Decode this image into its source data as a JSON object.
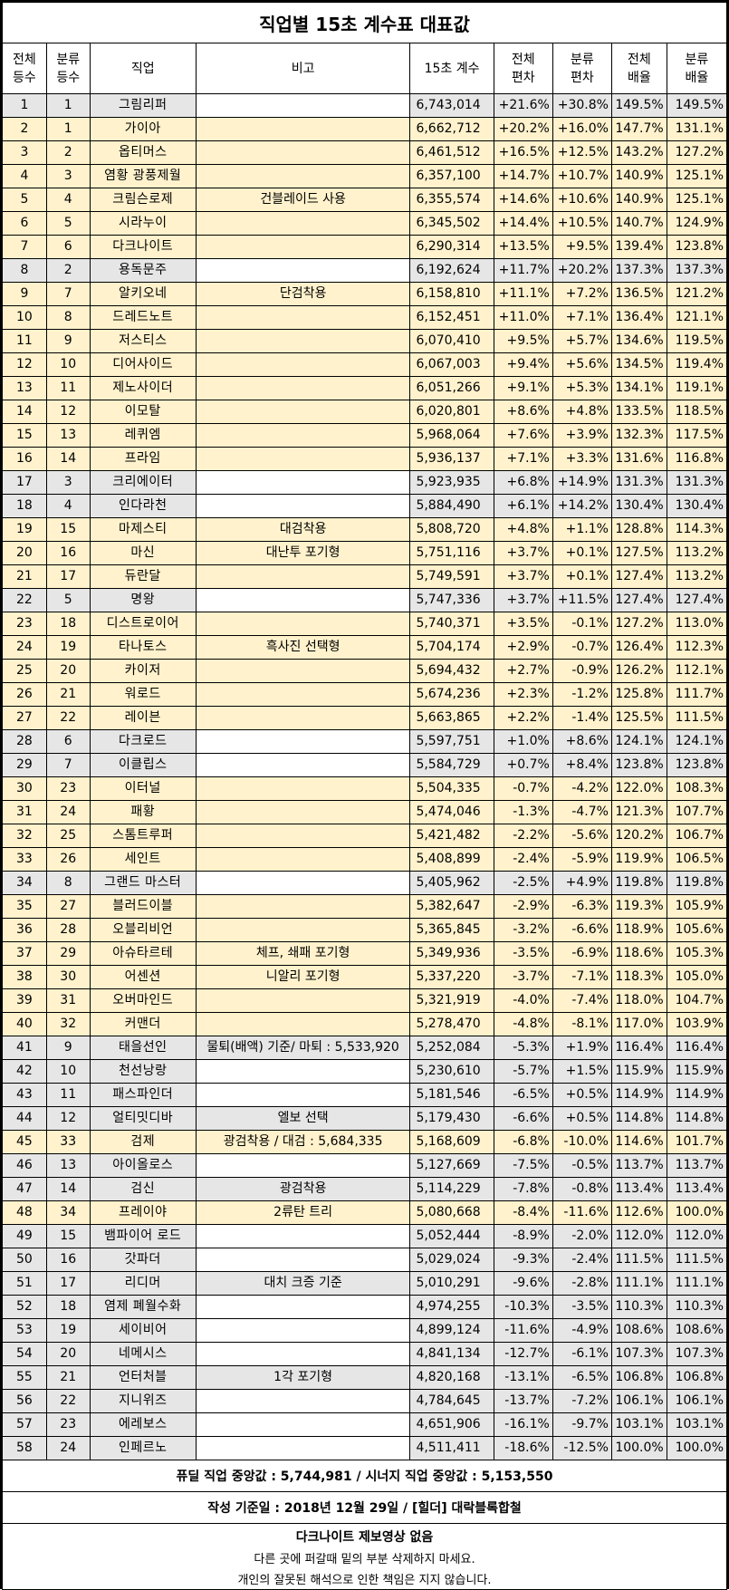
{
  "title": "직업별 15초 계수표 대표값",
  "headers": {
    "rank_total": [
      "전체",
      "등수"
    ],
    "rank_class": [
      "분류",
      "등수"
    ],
    "job": "직업",
    "note": "비고",
    "score": "15초 계수",
    "dev_total": [
      "전체",
      "편차"
    ],
    "dev_class": [
      "분류",
      "편차"
    ],
    "mult_total": [
      "전체",
      "배율"
    ],
    "mult_class": [
      "분류",
      "배율"
    ]
  },
  "rows": [
    {
      "rt": "1",
      "rc": "1",
      "job": "그림리퍼",
      "note": "",
      "score": "6,743,014",
      "dt": "+21.6%",
      "dc": "+30.8%",
      "mt": "149.5%",
      "mc": "149.5%",
      "color": "gray"
    },
    {
      "rt": "2",
      "rc": "1",
      "job": "가이아",
      "note": "",
      "score": "6,662,712",
      "dt": "+20.2%",
      "dc": "+16.0%",
      "mt": "147.7%",
      "mc": "131.1%",
      "color": "yellow"
    },
    {
      "rt": "3",
      "rc": "2",
      "job": "옵티머스",
      "note": "",
      "score": "6,461,512",
      "dt": "+16.5%",
      "dc": "+12.5%",
      "mt": "143.2%",
      "mc": "127.2%",
      "color": "yellow"
    },
    {
      "rt": "4",
      "rc": "3",
      "job": "염황 광풍제월",
      "note": "",
      "score": "6,357,100",
      "dt": "+14.7%",
      "dc": "+10.7%",
      "mt": "140.9%",
      "mc": "125.1%",
      "color": "yellow"
    },
    {
      "rt": "5",
      "rc": "4",
      "job": "크림슨로제",
      "note": "건블레이드 사용",
      "score": "6,355,574",
      "dt": "+14.6%",
      "dc": "+10.6%",
      "mt": "140.9%",
      "mc": "125.1%",
      "color": "yellow"
    },
    {
      "rt": "6",
      "rc": "5",
      "job": "시라누이",
      "note": "",
      "score": "6,345,502",
      "dt": "+14.4%",
      "dc": "+10.5%",
      "mt": "140.7%",
      "mc": "124.9%",
      "color": "yellow"
    },
    {
      "rt": "7",
      "rc": "6",
      "job": "다크나이트",
      "note": "",
      "score": "6,290,314",
      "dt": "+13.5%",
      "dc": "+9.5%",
      "mt": "139.4%",
      "mc": "123.8%",
      "color": "yellow"
    },
    {
      "rt": "8",
      "rc": "2",
      "job": "용독문주",
      "note": "",
      "score": "6,192,624",
      "dt": "+11.7%",
      "dc": "+20.2%",
      "mt": "137.3%",
      "mc": "137.3%",
      "color": "gray"
    },
    {
      "rt": "9",
      "rc": "7",
      "job": "알키오네",
      "note": "단검착용",
      "score": "6,158,810",
      "dt": "+11.1%",
      "dc": "+7.2%",
      "mt": "136.5%",
      "mc": "121.2%",
      "color": "yellow"
    },
    {
      "rt": "10",
      "rc": "8",
      "job": "드레드노트",
      "note": "",
      "score": "6,152,451",
      "dt": "+11.0%",
      "dc": "+7.1%",
      "mt": "136.4%",
      "mc": "121.1%",
      "color": "yellow"
    },
    {
      "rt": "11",
      "rc": "9",
      "job": "저스티스",
      "note": "",
      "score": "6,070,410",
      "dt": "+9.5%",
      "dc": "+5.7%",
      "mt": "134.6%",
      "mc": "119.5%",
      "color": "yellow"
    },
    {
      "rt": "12",
      "rc": "10",
      "job": "디어사이드",
      "note": "",
      "score": "6,067,003",
      "dt": "+9.4%",
      "dc": "+5.6%",
      "mt": "134.5%",
      "mc": "119.4%",
      "color": "yellow"
    },
    {
      "rt": "13",
      "rc": "11",
      "job": "제노사이더",
      "note": "",
      "score": "6,051,266",
      "dt": "+9.1%",
      "dc": "+5.3%",
      "mt": "134.1%",
      "mc": "119.1%",
      "color": "yellow"
    },
    {
      "rt": "14",
      "rc": "12",
      "job": "이모탈",
      "note": "",
      "score": "6,020,801",
      "dt": "+8.6%",
      "dc": "+4.8%",
      "mt": "133.5%",
      "mc": "118.5%",
      "color": "yellow"
    },
    {
      "rt": "15",
      "rc": "13",
      "job": "레퀴엠",
      "note": "",
      "score": "5,968,064",
      "dt": "+7.6%",
      "dc": "+3.9%",
      "mt": "132.3%",
      "mc": "117.5%",
      "color": "yellow"
    },
    {
      "rt": "16",
      "rc": "14",
      "job": "프라임",
      "note": "",
      "score": "5,936,137",
      "dt": "+7.1%",
      "dc": "+3.3%",
      "mt": "131.6%",
      "mc": "116.8%",
      "color": "yellow"
    },
    {
      "rt": "17",
      "rc": "3",
      "job": "크리에이터",
      "note": "",
      "score": "5,923,935",
      "dt": "+6.8%",
      "dc": "+14.9%",
      "mt": "131.3%",
      "mc": "131.3%",
      "color": "gray"
    },
    {
      "rt": "18",
      "rc": "4",
      "job": "인다라천",
      "note": "",
      "score": "5,884,490",
      "dt": "+6.1%",
      "dc": "+14.2%",
      "mt": "130.4%",
      "mc": "130.4%",
      "color": "gray"
    },
    {
      "rt": "19",
      "rc": "15",
      "job": "마제스티",
      "note": "대검착용",
      "score": "5,808,720",
      "dt": "+4.8%",
      "dc": "+1.1%",
      "mt": "128.8%",
      "mc": "114.3%",
      "color": "yellow"
    },
    {
      "rt": "20",
      "rc": "16",
      "job": "마신",
      "note": "대난투 포기형",
      "score": "5,751,116",
      "dt": "+3.7%",
      "dc": "+0.1%",
      "mt": "127.5%",
      "mc": "113.2%",
      "color": "yellow"
    },
    {
      "rt": "21",
      "rc": "17",
      "job": "듀란달",
      "note": "",
      "score": "5,749,591",
      "dt": "+3.7%",
      "dc": "+0.1%",
      "mt": "127.4%",
      "mc": "113.2%",
      "color": "yellow"
    },
    {
      "rt": "22",
      "rc": "5",
      "job": "명왕",
      "note": "",
      "score": "5,747,336",
      "dt": "+3.7%",
      "dc": "+11.5%",
      "mt": "127.4%",
      "mc": "127.4%",
      "color": "gray"
    },
    {
      "rt": "23",
      "rc": "18",
      "job": "디스트로이어",
      "note": "",
      "score": "5,740,371",
      "dt": "+3.5%",
      "dc": "-0.1%",
      "mt": "127.2%",
      "mc": "113.0%",
      "color": "yellow"
    },
    {
      "rt": "24",
      "rc": "19",
      "job": "타나토스",
      "note": "흑사진 선택형",
      "score": "5,704,174",
      "dt": "+2.9%",
      "dc": "-0.7%",
      "mt": "126.4%",
      "mc": "112.3%",
      "color": "yellow"
    },
    {
      "rt": "25",
      "rc": "20",
      "job": "카이저",
      "note": "",
      "score": "5,694,432",
      "dt": "+2.7%",
      "dc": "-0.9%",
      "mt": "126.2%",
      "mc": "112.1%",
      "color": "yellow"
    },
    {
      "rt": "26",
      "rc": "21",
      "job": "워로드",
      "note": "",
      "score": "5,674,236",
      "dt": "+2.3%",
      "dc": "-1.2%",
      "mt": "125.8%",
      "mc": "111.7%",
      "color": "yellow"
    },
    {
      "rt": "27",
      "rc": "22",
      "job": "레이븐",
      "note": "",
      "score": "5,663,865",
      "dt": "+2.2%",
      "dc": "-1.4%",
      "mt": "125.5%",
      "mc": "111.5%",
      "color": "yellow"
    },
    {
      "rt": "28",
      "rc": "6",
      "job": "다크로드",
      "note": "",
      "score": "5,597,751",
      "dt": "+1.0%",
      "dc": "+8.6%",
      "mt": "124.1%",
      "mc": "124.1%",
      "color": "gray"
    },
    {
      "rt": "29",
      "rc": "7",
      "job": "이클립스",
      "note": "",
      "score": "5,584,729",
      "dt": "+0.7%",
      "dc": "+8.4%",
      "mt": "123.8%",
      "mc": "123.8%",
      "color": "gray"
    },
    {
      "rt": "30",
      "rc": "23",
      "job": "이터널",
      "note": "",
      "score": "5,504,335",
      "dt": "-0.7%",
      "dc": "-4.2%",
      "mt": "122.0%",
      "mc": "108.3%",
      "color": "yellow"
    },
    {
      "rt": "31",
      "rc": "24",
      "job": "패황",
      "note": "",
      "score": "5,474,046",
      "dt": "-1.3%",
      "dc": "-4.7%",
      "mt": "121.3%",
      "mc": "107.7%",
      "color": "yellow"
    },
    {
      "rt": "32",
      "rc": "25",
      "job": "스톰트루퍼",
      "note": "",
      "score": "5,421,482",
      "dt": "-2.2%",
      "dc": "-5.6%",
      "mt": "120.2%",
      "mc": "106.7%",
      "color": "yellow"
    },
    {
      "rt": "33",
      "rc": "26",
      "job": "세인트",
      "note": "",
      "score": "5,408,899",
      "dt": "-2.4%",
      "dc": "-5.9%",
      "mt": "119.9%",
      "mc": "106.5%",
      "color": "yellow"
    },
    {
      "rt": "34",
      "rc": "8",
      "job": "그랜드 마스터",
      "note": "",
      "score": "5,405,962",
      "dt": "-2.5%",
      "dc": "+4.9%",
      "mt": "119.8%",
      "mc": "119.8%",
      "color": "gray"
    },
    {
      "rt": "35",
      "rc": "27",
      "job": "블러드이블",
      "note": "",
      "score": "5,382,647",
      "dt": "-2.9%",
      "dc": "-6.3%",
      "mt": "119.3%",
      "mc": "105.9%",
      "color": "yellow"
    },
    {
      "rt": "36",
      "rc": "28",
      "job": "오블리비언",
      "note": "",
      "score": "5,365,845",
      "dt": "-3.2%",
      "dc": "-6.6%",
      "mt": "118.9%",
      "mc": "105.6%",
      "color": "yellow"
    },
    {
      "rt": "37",
      "rc": "29",
      "job": "아슈타르테",
      "note": "체프, 쇄패 포기형",
      "score": "5,349,936",
      "dt": "-3.5%",
      "dc": "-6.9%",
      "mt": "118.6%",
      "mc": "105.3%",
      "color": "yellow"
    },
    {
      "rt": "38",
      "rc": "30",
      "job": "어센션",
      "note": "니알리 포기형",
      "score": "5,337,220",
      "dt": "-3.7%",
      "dc": "-7.1%",
      "mt": "118.3%",
      "mc": "105.0%",
      "color": "yellow"
    },
    {
      "rt": "39",
      "rc": "31",
      "job": "오버마인드",
      "note": "",
      "score": "5,321,919",
      "dt": "-4.0%",
      "dc": "-7.4%",
      "mt": "118.0%",
      "mc": "104.7%",
      "color": "yellow"
    },
    {
      "rt": "40",
      "rc": "32",
      "job": "커맨더",
      "note": "",
      "score": "5,278,470",
      "dt": "-4.8%",
      "dc": "-8.1%",
      "mt": "117.0%",
      "mc": "103.9%",
      "color": "yellow"
    },
    {
      "rt": "41",
      "rc": "9",
      "job": "태을선인",
      "note": "물퇴(배액) 기준/ 마퇴 : 5,533,920",
      "score": "5,252,084",
      "dt": "-5.3%",
      "dc": "+1.9%",
      "mt": "116.4%",
      "mc": "116.4%",
      "color": "gray"
    },
    {
      "rt": "42",
      "rc": "10",
      "job": "천선낭랑",
      "note": "",
      "score": "5,230,610",
      "dt": "-5.7%",
      "dc": "+1.5%",
      "mt": "115.9%",
      "mc": "115.9%",
      "color": "gray"
    },
    {
      "rt": "43",
      "rc": "11",
      "job": "패스파인더",
      "note": "",
      "score": "5,181,546",
      "dt": "-6.5%",
      "dc": "+0.5%",
      "mt": "114.9%",
      "mc": "114.9%",
      "color": "gray"
    },
    {
      "rt": "44",
      "rc": "12",
      "job": "얼티밋디바",
      "note": "엘보 선택",
      "score": "5,179,430",
      "dt": "-6.6%",
      "dc": "+0.5%",
      "mt": "114.8%",
      "mc": "114.8%",
      "color": "gray"
    },
    {
      "rt": "45",
      "rc": "33",
      "job": "검제",
      "note": "광검착용 / 대검 : 5,684,335",
      "score": "5,168,609",
      "dt": "-6.8%",
      "dc": "-10.0%",
      "mt": "114.6%",
      "mc": "101.7%",
      "color": "yellow"
    },
    {
      "rt": "46",
      "rc": "13",
      "job": "아이올로스",
      "note": "",
      "score": "5,127,669",
      "dt": "-7.5%",
      "dc": "-0.5%",
      "mt": "113.7%",
      "mc": "113.7%",
      "color": "gray"
    },
    {
      "rt": "47",
      "rc": "14",
      "job": "검신",
      "note": "광검착용",
      "score": "5,114,229",
      "dt": "-7.8%",
      "dc": "-0.8%",
      "mt": "113.4%",
      "mc": "113.4%",
      "color": "gray"
    },
    {
      "rt": "48",
      "rc": "34",
      "job": "프레이야",
      "note": "2류탄 트리",
      "score": "5,080,668",
      "dt": "-8.4%",
      "dc": "-11.6%",
      "mt": "112.6%",
      "mc": "100.0%",
      "color": "yellow"
    },
    {
      "rt": "49",
      "rc": "15",
      "job": "뱀파이어 로드",
      "note": "",
      "score": "5,052,444",
      "dt": "-8.9%",
      "dc": "-2.0%",
      "mt": "112.0%",
      "mc": "112.0%",
      "color": "gray"
    },
    {
      "rt": "50",
      "rc": "16",
      "job": "갓파더",
      "note": "",
      "score": "5,029,024",
      "dt": "-9.3%",
      "dc": "-2.4%",
      "mt": "111.5%",
      "mc": "111.5%",
      "color": "gray"
    },
    {
      "rt": "51",
      "rc": "17",
      "job": "리디머",
      "note": "대치 크증 기준",
      "score": "5,010,291",
      "dt": "-9.6%",
      "dc": "-2.8%",
      "mt": "111.1%",
      "mc": "111.1%",
      "color": "gray"
    },
    {
      "rt": "52",
      "rc": "18",
      "job": "염제 폐월수화",
      "note": "",
      "score": "4,974,255",
      "dt": "-10.3%",
      "dc": "-3.5%",
      "mt": "110.3%",
      "mc": "110.3%",
      "color": "gray"
    },
    {
      "rt": "53",
      "rc": "19",
      "job": "세이비어",
      "note": "",
      "score": "4,899,124",
      "dt": "-11.6%",
      "dc": "-4.9%",
      "mt": "108.6%",
      "mc": "108.6%",
      "color": "gray"
    },
    {
      "rt": "54",
      "rc": "20",
      "job": "네메시스",
      "note": "",
      "score": "4,841,134",
      "dt": "-12.7%",
      "dc": "-6.1%",
      "mt": "107.3%",
      "mc": "107.3%",
      "color": "gray"
    },
    {
      "rt": "55",
      "rc": "21",
      "job": "언터처블",
      "note": "1각 포기형",
      "score": "4,820,168",
      "dt": "-13.1%",
      "dc": "-6.5%",
      "mt": "106.8%",
      "mc": "106.8%",
      "color": "gray"
    },
    {
      "rt": "56",
      "rc": "22",
      "job": "지니위즈",
      "note": "",
      "score": "4,784,645",
      "dt": "-13.7%",
      "dc": "-7.2%",
      "mt": "106.1%",
      "mc": "106.1%",
      "color": "gray"
    },
    {
      "rt": "57",
      "rc": "23",
      "job": "에레보스",
      "note": "",
      "score": "4,651,906",
      "dt": "-16.1%",
      "dc": "-9.7%",
      "mt": "103.1%",
      "mc": "103.1%",
      "color": "gray"
    },
    {
      "rt": "58",
      "rc": "24",
      "job": "인페르노",
      "note": "",
      "score": "4,511,411",
      "dt": "-18.6%",
      "dc": "-12.5%",
      "mt": "100.0%",
      "mc": "100.0%",
      "color": "gray"
    }
  ],
  "footer": {
    "median": "퓨딜 직업 중앙값 : 5,744,981 / 시너지 직업 중앙값 : 5,153,550",
    "date": "작성 기준일 : 2018년 12월 29일 / [힐더] 대락블록합철",
    "no_video": "다크나이트 제보영상 없음",
    "warning": "다른 곳에 퍼갈때 밑의 부분 삭제하지 마세요.",
    "disclaimer": "개인의 잘못된 해석으로 인한 책임은 지지 않습니다."
  },
  "colors": {
    "yellow": "#fff2cc",
    "gray": "#e7e6e6"
  }
}
